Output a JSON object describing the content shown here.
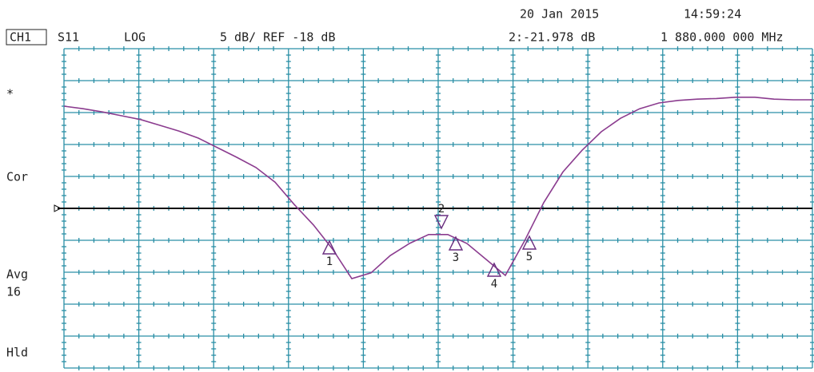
{
  "chart_data": {
    "type": "line",
    "header": {
      "date": "20 Jan 2015",
      "time": "14:59:24",
      "channel": "CH1",
      "parameter": "S11",
      "format": "LOG",
      "scale": "5 dB/ REF -18 dB",
      "marker_readout": "2:-21.978 dB",
      "marker_frequency": "1 880.000 000 MHz"
    },
    "side_labels": [
      "*",
      "Cor",
      "Avg",
      "16",
      "Hld"
    ],
    "reference": -18,
    "ylim": [
      -43,
      7
    ],
    "series": [
      {
        "name": "S11",
        "color": "#8b3c8f",
        "values": [
          -2.0,
          -2.4,
          -2.9,
          -3.5,
          -4.1,
          -5.0,
          -5.9,
          -7.0,
          -8.5,
          -10.0,
          -11.6,
          -13.9,
          -17.4,
          -20.6,
          -24.4,
          -29.0,
          -28.1,
          -25.4,
          -23.5,
          -22.1,
          -22.1,
          -23.5,
          -26.0,
          -28.5,
          -23.1,
          -17.1,
          -12.3,
          -8.9,
          -6.0,
          -3.9,
          -2.4,
          -1.5,
          -1.1,
          -0.9,
          -0.8,
          -0.6,
          -0.6,
          -0.9,
          -1.0,
          -1.0
        ]
      }
    ],
    "markers": [
      "1",
      "2",
      "3",
      "4",
      "5"
    ]
  }
}
